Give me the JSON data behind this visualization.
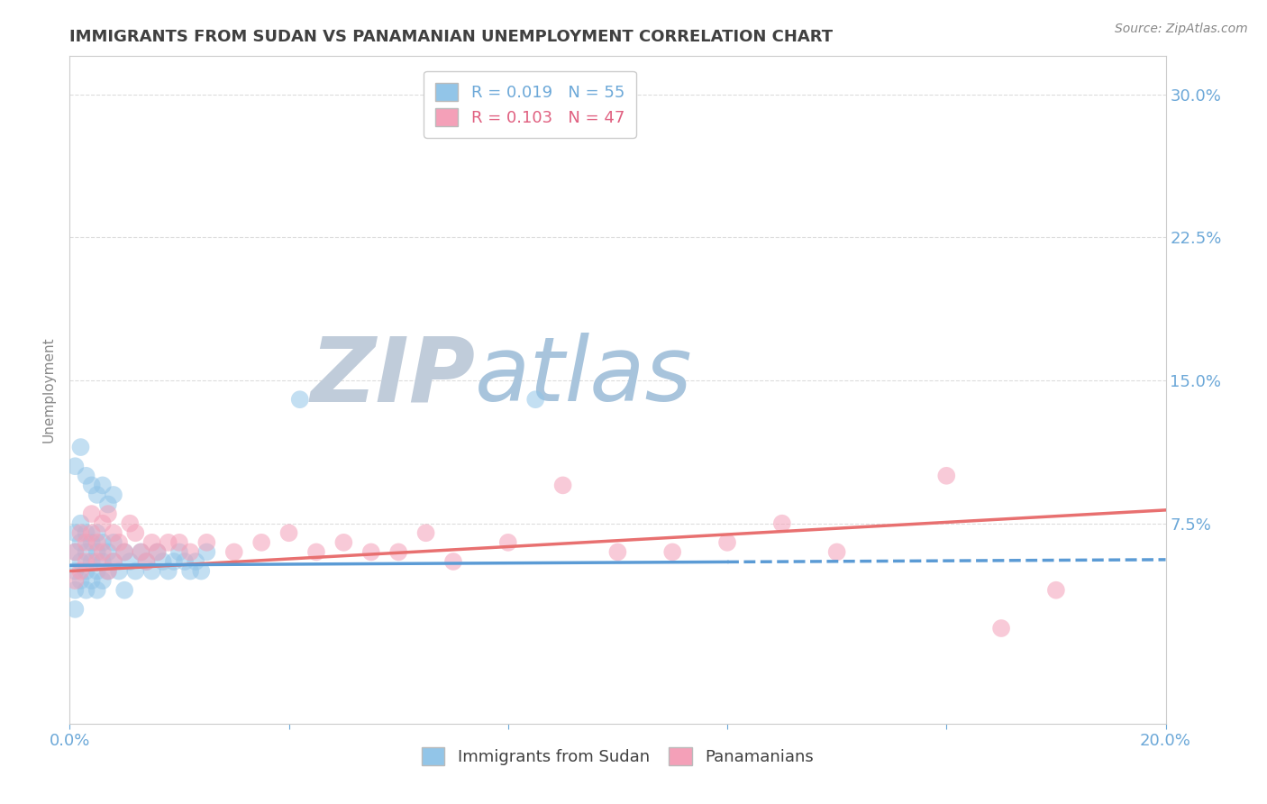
{
  "title": "IMMIGRANTS FROM SUDAN VS PANAMANIAN UNEMPLOYMENT CORRELATION CHART",
  "source_text": "Source: ZipAtlas.com",
  "ylabel": "Unemployment",
  "xlim": [
    0.0,
    0.2
  ],
  "ylim": [
    -0.03,
    0.32
  ],
  "right_yticks": [
    0.075,
    0.15,
    0.225,
    0.3
  ],
  "right_ytick_labels": [
    "7.5%",
    "15.0%",
    "22.5%",
    "30.0%"
  ],
  "legend_label1": "R = 0.019   N = 55",
  "legend_label2": "R = 0.103   N = 47",
  "color_blue": "#92C5E8",
  "color_pink": "#F4A0B8",
  "color_trendline_blue": "#5B9BD5",
  "color_trendline_pink": "#E87070",
  "watermark_zip": "ZIP",
  "watermark_atlas": "atlas",
  "watermark_color_zip": "#C0CCDA",
  "watermark_color_atlas": "#A8C4DC",
  "title_color": "#404040",
  "axis_label_color": "#6CA8D8",
  "background_color": "#FFFFFF",
  "grid_color": "#DDDDDD",
  "blue_scatter_x": [
    0.001,
    0.001,
    0.001,
    0.001,
    0.001,
    0.002,
    0.002,
    0.002,
    0.002,
    0.003,
    0.003,
    0.003,
    0.003,
    0.004,
    0.004,
    0.004,
    0.005,
    0.005,
    0.005,
    0.005,
    0.006,
    0.006,
    0.006,
    0.007,
    0.007,
    0.008,
    0.008,
    0.009,
    0.01,
    0.01,
    0.011,
    0.012,
    0.013,
    0.014,
    0.015,
    0.016,
    0.017,
    0.018,
    0.019,
    0.02,
    0.021,
    0.022,
    0.023,
    0.024,
    0.025,
    0.001,
    0.002,
    0.003,
    0.004,
    0.005,
    0.006,
    0.007,
    0.008,
    0.042,
    0.085
  ],
  "blue_scatter_y": [
    0.05,
    0.04,
    0.06,
    0.03,
    0.07,
    0.055,
    0.045,
    0.065,
    0.075,
    0.05,
    0.06,
    0.04,
    0.07,
    0.055,
    0.065,
    0.045,
    0.05,
    0.04,
    0.06,
    0.07,
    0.055,
    0.045,
    0.065,
    0.05,
    0.06,
    0.055,
    0.065,
    0.05,
    0.06,
    0.04,
    0.055,
    0.05,
    0.06,
    0.055,
    0.05,
    0.06,
    0.055,
    0.05,
    0.055,
    0.06,
    0.055,
    0.05,
    0.055,
    0.05,
    0.06,
    0.105,
    0.115,
    0.1,
    0.095,
    0.09,
    0.095,
    0.085,
    0.09,
    0.14,
    0.14
  ],
  "pink_scatter_x": [
    0.001,
    0.001,
    0.002,
    0.002,
    0.003,
    0.003,
    0.004,
    0.004,
    0.005,
    0.005,
    0.006,
    0.006,
    0.007,
    0.007,
    0.008,
    0.008,
    0.009,
    0.01,
    0.011,
    0.012,
    0.013,
    0.014,
    0.015,
    0.016,
    0.018,
    0.02,
    0.022,
    0.025,
    0.03,
    0.035,
    0.04,
    0.045,
    0.05,
    0.055,
    0.06,
    0.065,
    0.07,
    0.08,
    0.09,
    0.1,
    0.11,
    0.12,
    0.13,
    0.14,
    0.16,
    0.17,
    0.18
  ],
  "pink_scatter_y": [
    0.06,
    0.045,
    0.07,
    0.05,
    0.055,
    0.065,
    0.07,
    0.08,
    0.055,
    0.065,
    0.06,
    0.075,
    0.05,
    0.08,
    0.055,
    0.07,
    0.065,
    0.06,
    0.075,
    0.07,
    0.06,
    0.055,
    0.065,
    0.06,
    0.065,
    0.065,
    0.06,
    0.065,
    0.06,
    0.065,
    0.07,
    0.06,
    0.065,
    0.06,
    0.06,
    0.07,
    0.055,
    0.065,
    0.095,
    0.06,
    0.06,
    0.065,
    0.075,
    0.06,
    0.1,
    0.02,
    0.04
  ]
}
